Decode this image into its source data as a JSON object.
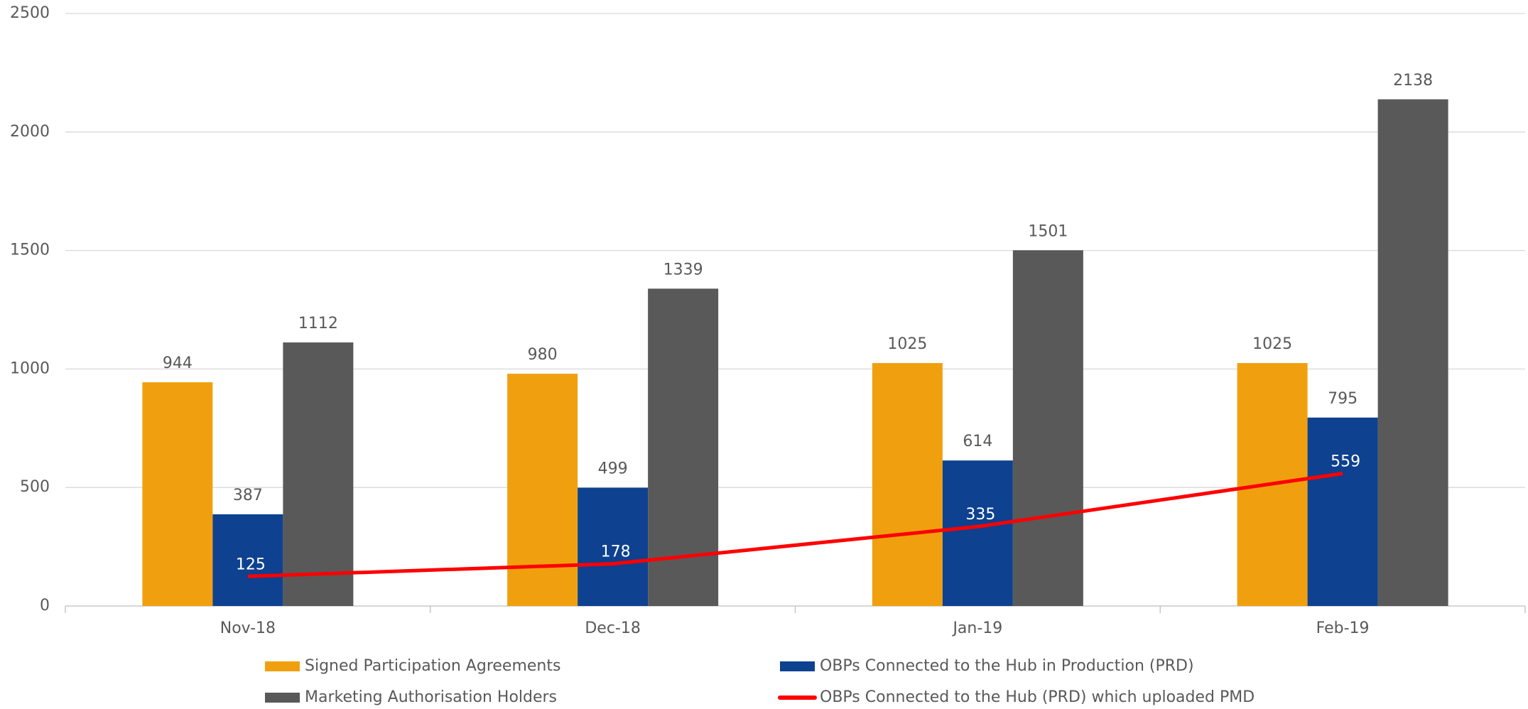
{
  "chart_data": {
    "type": "bar",
    "categories": [
      "Nov-18",
      "Dec-18",
      "Jan-19",
      "Feb-19"
    ],
    "series": [
      {
        "name": "Signed Participation Agreements",
        "color": "#f0a00e",
        "type": "bar",
        "values": [
          944,
          980,
          1025,
          1025
        ]
      },
      {
        "name": "OBPs Connected to the Hub in Production (PRD)",
        "color": "#0e418f",
        "type": "bar",
        "values": [
          387,
          499,
          614,
          795
        ]
      },
      {
        "name": "Marketing Authorisation Holders",
        "color": "#595959",
        "type": "bar",
        "values": [
          1112,
          1339,
          1501,
          2138
        ]
      },
      {
        "name": "OBPs Connected to the Hub (PRD) which uploaded PMD",
        "color": "#ff0000",
        "type": "line",
        "values": [
          125,
          178,
          335,
          559
        ]
      }
    ],
    "ylim": [
      0,
      2500
    ],
    "yticks": [
      0,
      500,
      1000,
      1500,
      2000,
      2500
    ],
    "grid": true,
    "legend": "bottom"
  }
}
